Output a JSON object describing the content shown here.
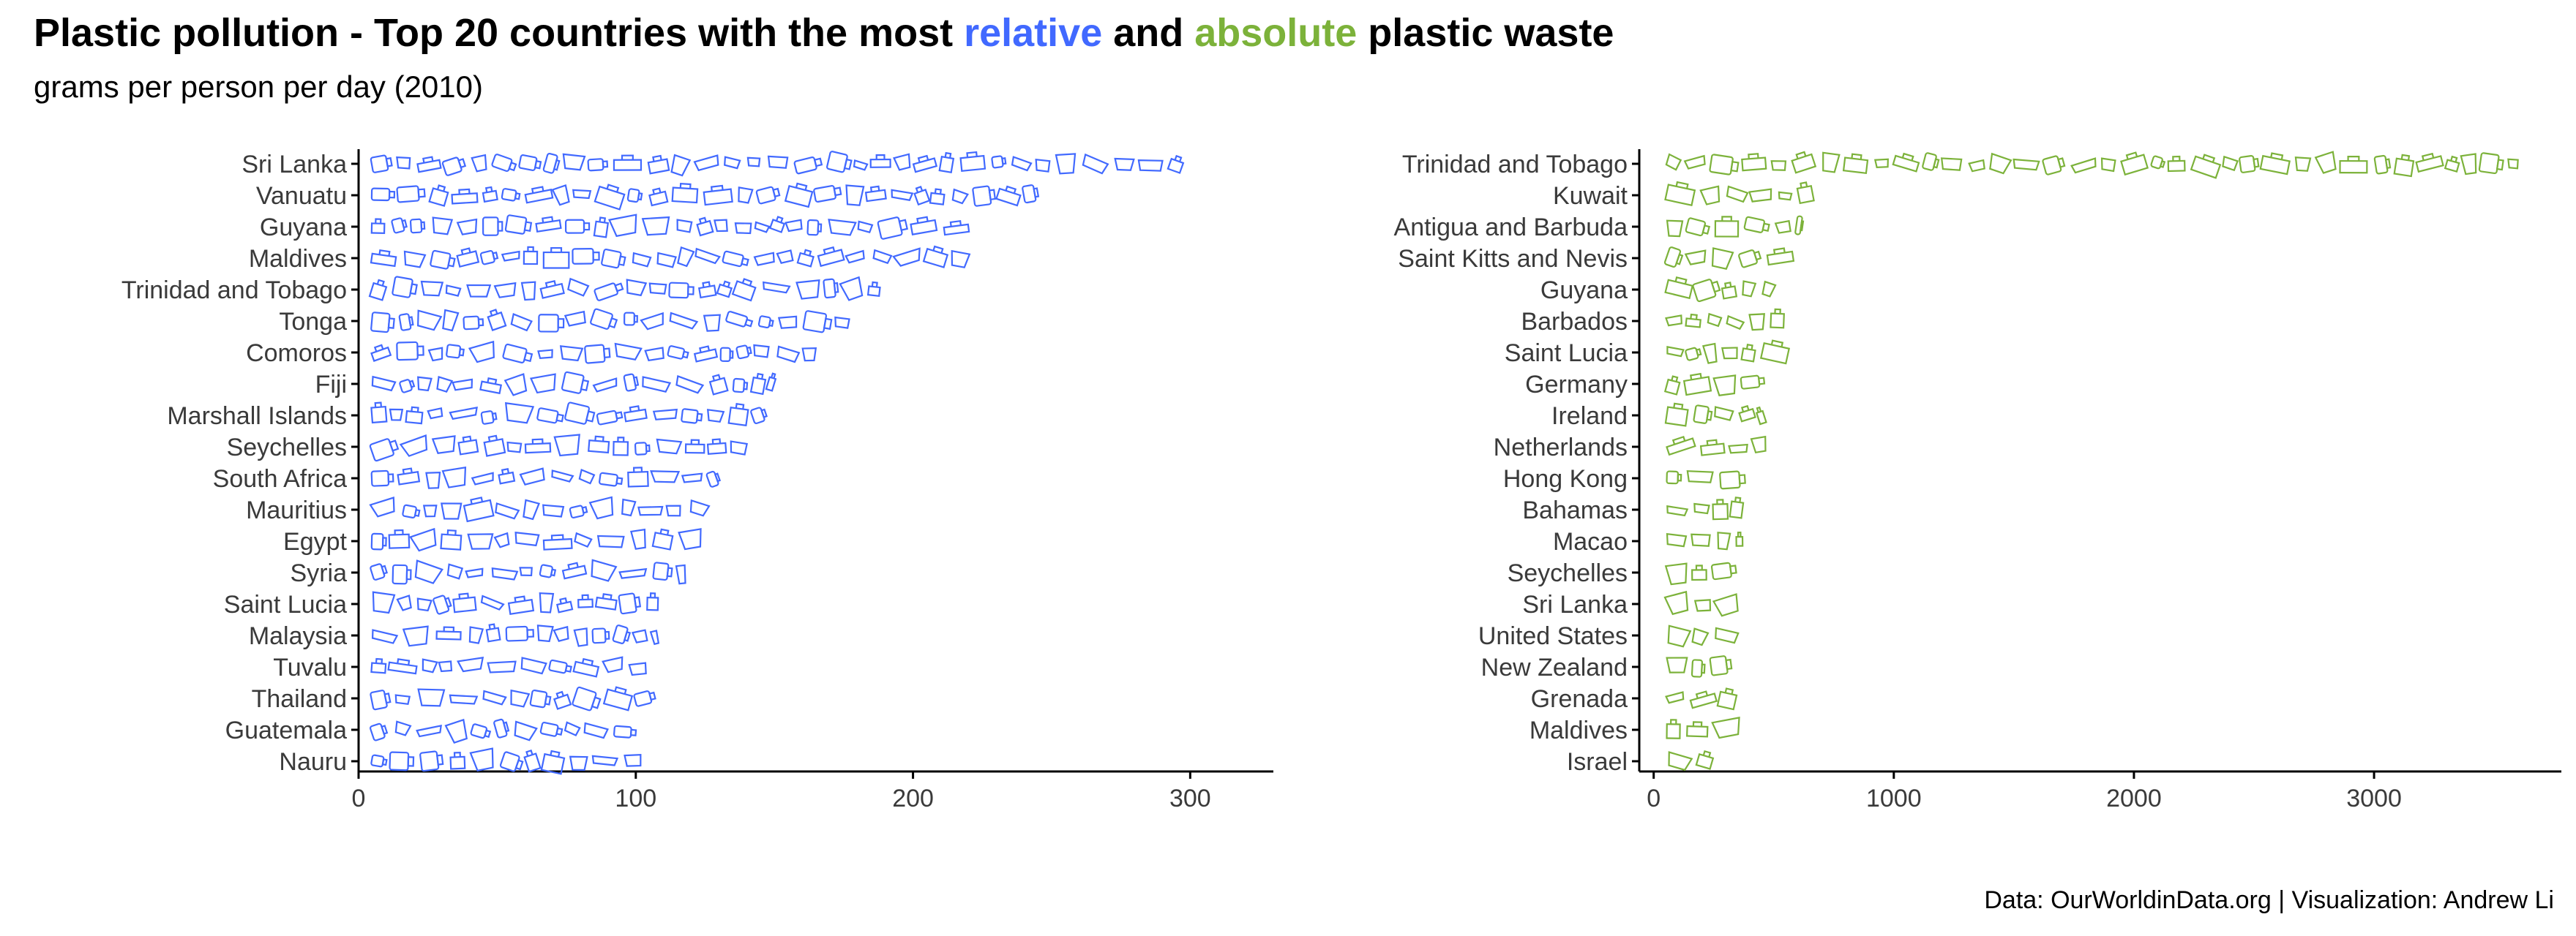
{
  "title": {
    "prefix": "Plastic pollution - Top 20 countries with the most ",
    "relative": "relative",
    "and": " and ",
    "absolute": "absolute",
    "suffix": " plastic waste"
  },
  "subtitle": "grams per person per day (2010)",
  "caption": "Data: OurWorldinData.org | Visualization: Andrew Li",
  "colors": {
    "relative": "#4169ff",
    "absolute": "#7cb23a",
    "axis": "#000000",
    "text": "#3a3a3a"
  },
  "chart_data": [
    {
      "type": "bar",
      "series_color": "#4169ff",
      "mark": "plastic-item-icons",
      "categories": [
        "Sri Lanka",
        "Vanuatu",
        "Guyana",
        "Maldives",
        "Trinidad and Tobago",
        "Tonga",
        "Comoros",
        "Fiji",
        "Marshall Islands",
        "Seychelles",
        "South Africa",
        "Mauritius",
        "Egypt",
        "Syria",
        "Saint Lucia",
        "Malaysia",
        "Tuvalu",
        "Thailand",
        "Guatemala",
        "Nauru"
      ],
      "values": [
        300,
        245,
        220,
        220,
        188,
        178,
        165,
        150,
        150,
        140,
        130,
        126,
        124,
        118,
        108,
        108,
        108,
        110,
        100,
        102
      ],
      "xticks": [
        0,
        100,
        200,
        300
      ],
      "xlim": [
        0,
        330
      ],
      "orientation": "horizontal",
      "grid": false
    },
    {
      "type": "bar",
      "series_color": "#7cb23a",
      "mark": "plastic-item-icons",
      "categories": [
        "Trinidad and Tobago",
        "Kuwait",
        "Antigua and Barbuda",
        "Saint Kitts and Nevis",
        "Guyana",
        "Barbados",
        "Saint Lucia",
        "Germany",
        "Ireland",
        "Netherlands",
        "Hong Kong",
        "Bahamas",
        "Macao",
        "Seychelles",
        "Sri Lanka",
        "United States",
        "New Zealand",
        "Grenada",
        "Maldives",
        "Israel"
      ],
      "values": [
        3600,
        680,
        620,
        600,
        500,
        560,
        560,
        460,
        460,
        470,
        380,
        370,
        370,
        370,
        380,
        380,
        370,
        370,
        390,
        260
      ],
      "xticks": [
        0,
        1000,
        2000,
        3000
      ],
      "xlim": [
        -60,
        3780
      ],
      "orientation": "horizontal",
      "grid": false
    }
  ]
}
